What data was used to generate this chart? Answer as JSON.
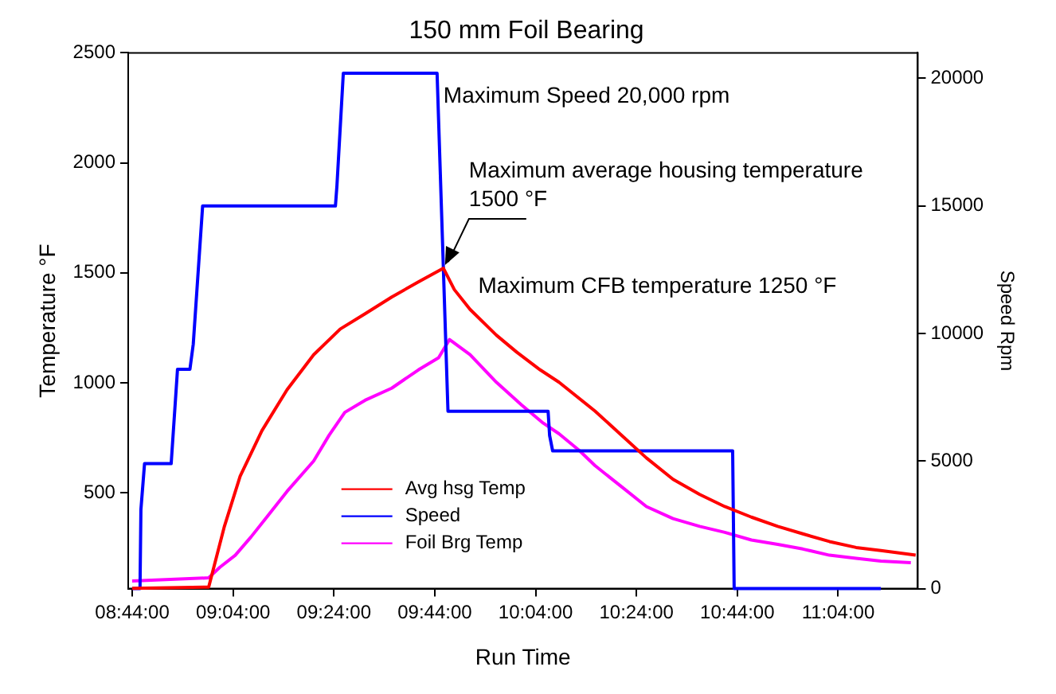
{
  "chart_data": {
    "type": "line",
    "title": "150 mm Foil Bearing",
    "xlabel": "Run Time",
    "ylabel": "Temperature °F",
    "y2label": "Speed Rpm",
    "xlim": [
      8.72,
      11.33
    ],
    "xticks": [
      {
        "value": 8.7333,
        "label": "08:44:00"
      },
      {
        "value": 9.0667,
        "label": "09:04:00"
      },
      {
        "value": 9.4,
        "label": "09:24:00"
      },
      {
        "value": 9.7333,
        "label": "09:44:00"
      },
      {
        "value": 10.0667,
        "label": "10:04:00"
      },
      {
        "value": 10.4,
        "label": "10:24:00"
      },
      {
        "value": 10.7333,
        "label": "10:44:00"
      },
      {
        "value": 11.0667,
        "label": "11:04:00"
      }
    ],
    "ylim": [
      65,
      2500
    ],
    "yticks": [
      500,
      1000,
      1500,
      2000,
      2500
    ],
    "y2lim": [
      0,
      21000
    ],
    "y2ticks": [
      0,
      5000,
      10000,
      15000,
      20000
    ],
    "grid": false,
    "legend": "bottom",
    "marker": "none",
    "line_style": "solid",
    "series": [
      {
        "name": "Avg hsg Temp",
        "color": "#ff0000",
        "x": [
          8.733,
          8.986,
          9.038,
          9.09,
          9.162,
          9.245,
          9.333,
          9.421,
          9.503,
          9.591,
          9.679,
          9.762,
          9.798,
          9.85,
          9.937,
          10.004,
          10.082,
          10.144,
          10.263,
          10.351,
          10.433,
          10.521,
          10.609,
          10.692,
          10.78,
          10.867,
          10.95,
          11.038,
          11.126,
          11.208,
          11.323
        ],
        "values": [
          66,
          72,
          348,
          576,
          783,
          969,
          1128,
          1245,
          1314,
          1390,
          1459,
          1521,
          1424,
          1334,
          1217,
          1140,
          1059,
          1003,
          872,
          762,
          659,
          562,
          493,
          438,
          390,
          348,
          314,
          279,
          252,
          238,
          217
        ]
      },
      {
        "name": "Speed",
        "color": "#0000ff",
        "axis": "y2",
        "x": [
          8.733,
          8.759,
          8.762,
          8.774,
          8.862,
          8.883,
          8.924,
          8.935,
          8.966,
          9.405,
          9.41,
          9.431,
          9.741,
          9.777,
          10.108,
          10.113,
          10.123,
          10.718,
          10.723,
          11.208
        ],
        "values": [
          0,
          0,
          3100,
          4900,
          4900,
          8600,
          8600,
          9580,
          15000,
          15000,
          15800,
          20200,
          20200,
          6950,
          6950,
          6000,
          5400,
          5400,
          0,
          0
        ]
      },
      {
        "name": "Foil Brg Temp",
        "color": "#ff00ff",
        "x": [
          8.733,
          8.986,
          9.023,
          9.074,
          9.126,
          9.178,
          9.245,
          9.333,
          9.384,
          9.436,
          9.503,
          9.591,
          9.679,
          9.746,
          9.782,
          9.85,
          9.937,
          10.02,
          10.092,
          10.144,
          10.211,
          10.263,
          10.351,
          10.433,
          10.521,
          10.609,
          10.692,
          10.78,
          10.867,
          10.95,
          11.038,
          11.126,
          11.208,
          11.307
        ],
        "values": [
          100,
          114,
          162,
          217,
          300,
          390,
          507,
          645,
          762,
          866,
          921,
          976,
          1059,
          1114,
          1197,
          1128,
          1003,
          900,
          817,
          769,
          693,
          624,
          528,
          438,
          383,
          348,
          321,
          286,
          266,
          245,
          217,
          203,
          190,
          183
        ]
      }
    ],
    "annotations": [
      {
        "text": "Maximum Speed 20,000 rpm",
        "x": 9.741,
        "y": 2390
      },
      {
        "text": "Maximum average housing temperature 1500 °F",
        "x": 9.762,
        "y": 1521
      },
      {
        "text": "Maximum CFB temperature 1250 °F",
        "x": 9.782,
        "y": 1197
      }
    ]
  }
}
